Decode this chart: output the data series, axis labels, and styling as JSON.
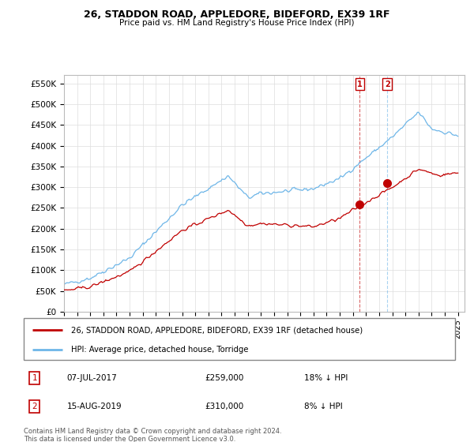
{
  "title": "26, STADDON ROAD, APPLEDORE, BIDEFORD, EX39 1RF",
  "subtitle": "Price paid vs. HM Land Registry's House Price Index (HPI)",
  "ylabel_ticks": [
    "£0",
    "£50K",
    "£100K",
    "£150K",
    "£200K",
    "£250K",
    "£300K",
    "£350K",
    "£400K",
    "£450K",
    "£500K",
    "£550K"
  ],
  "ytick_values": [
    0,
    50000,
    100000,
    150000,
    200000,
    250000,
    300000,
    350000,
    400000,
    450000,
    500000,
    550000
  ],
  "ylim": [
    0,
    570000
  ],
  "xlim_start": 1995.0,
  "xlim_end": 2025.5,
  "hpi_color": "#6EB6E8",
  "price_color": "#C00000",
  "sale1_x": 2017.52,
  "sale1_y": 259000,
  "sale2_x": 2019.62,
  "sale2_y": 310000,
  "sale1_label": "07-JUL-2017",
  "sale1_price": "£259,000",
  "sale1_pct": "18% ↓ HPI",
  "sale2_label": "15-AUG-2019",
  "sale2_price": "£310,000",
  "sale2_pct": "8% ↓ HPI",
  "legend_line1": "26, STADDON ROAD, APPLEDORE, BIDEFORD, EX39 1RF (detached house)",
  "legend_line2": "HPI: Average price, detached house, Torridge",
  "footer": "Contains HM Land Registry data © Crown copyright and database right 2024.\nThis data is licensed under the Open Government Licence v3.0.",
  "vline1_x": 2017.52,
  "vline2_x": 2019.62
}
